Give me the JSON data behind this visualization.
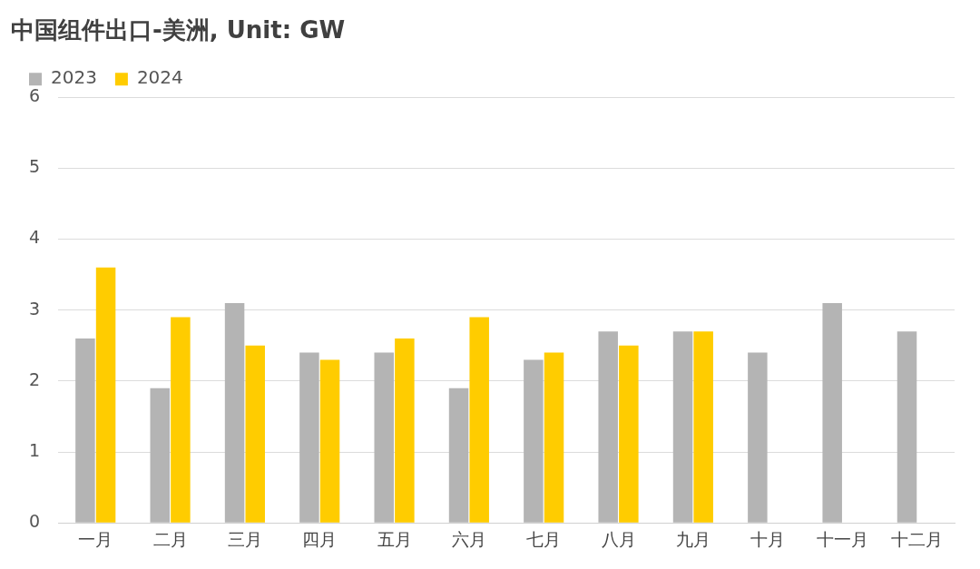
{
  "chart_data": {
    "type": "bar",
    "title": "中国组件出口-美洲, Unit: GW",
    "categories": [
      "一月",
      "二月",
      "三月",
      "四月",
      "五月",
      "六月",
      "七月",
      "八月",
      "九月",
      "十月",
      "十一月",
      "十二月"
    ],
    "series": [
      {
        "name": "2023",
        "color": "#b4b4b4",
        "values": [
          2.6,
          1.9,
          3.1,
          2.4,
          2.4,
          1.9,
          2.3,
          2.7,
          2.7,
          2.4,
          3.1,
          2.7
        ]
      },
      {
        "name": "2024",
        "color": "#ffcc00",
        "values": [
          3.6,
          2.9,
          2.5,
          2.3,
          2.6,
          2.9,
          2.4,
          2.5,
          2.7,
          null,
          null,
          null
        ]
      }
    ],
    "ylim": [
      0,
      6
    ],
    "yticks": [
      0,
      1,
      2,
      3,
      4,
      5,
      6
    ],
    "grid": "y",
    "legend": "top left"
  }
}
